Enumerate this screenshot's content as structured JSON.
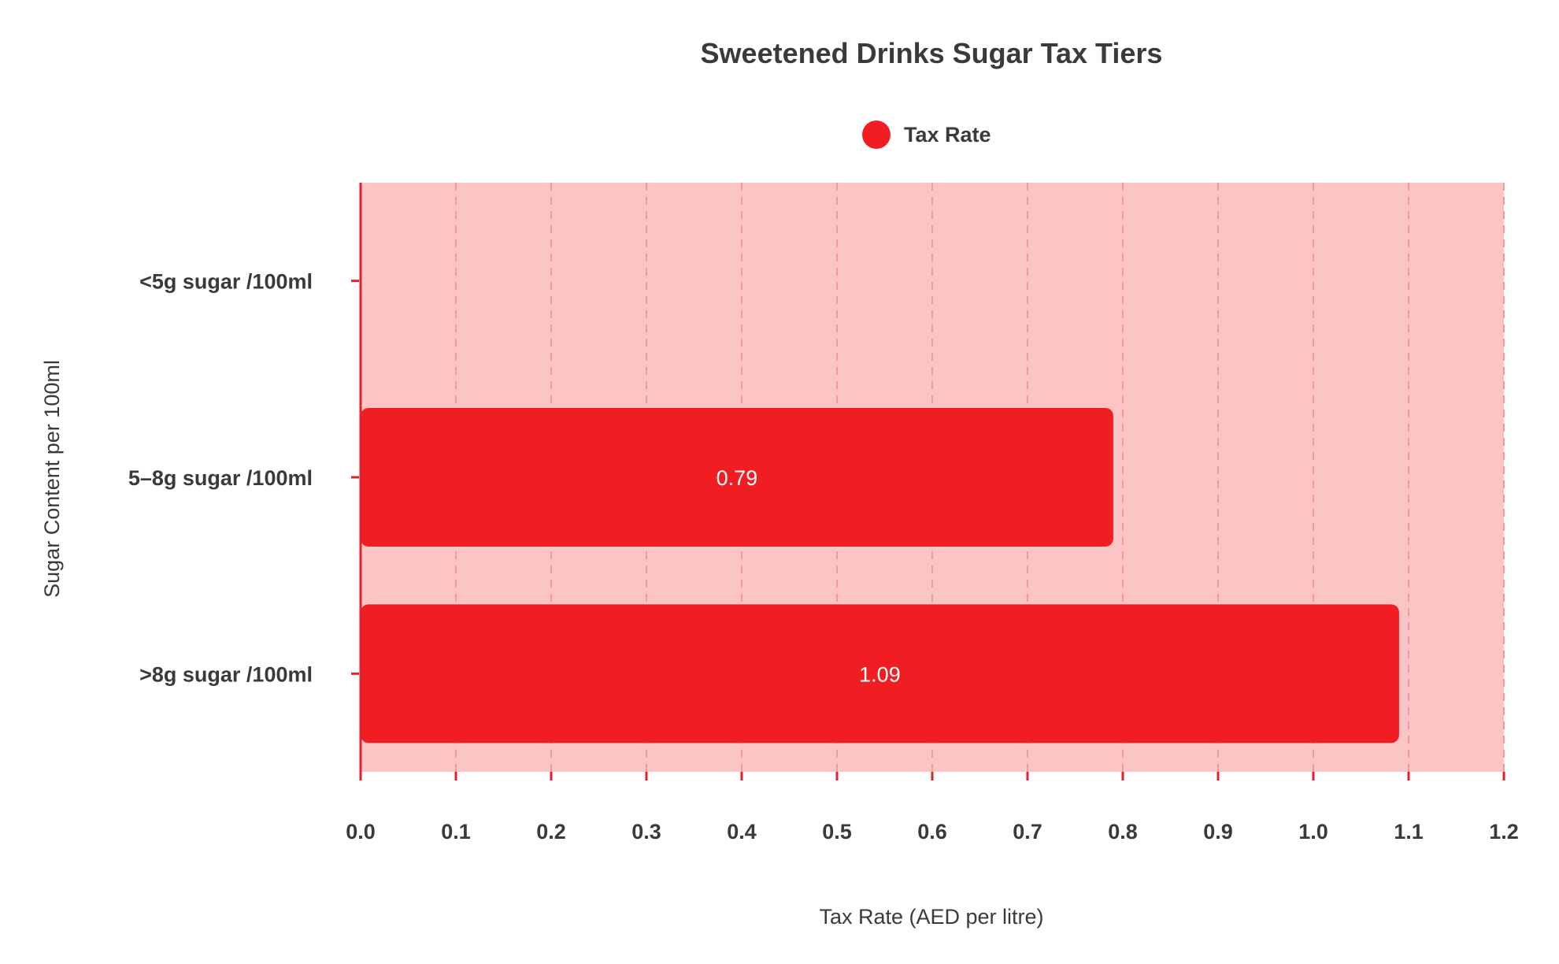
{
  "chart_data": {
    "type": "bar",
    "orientation": "horizontal",
    "title": "Sweetened Drinks Sugar Tax Tiers",
    "xlabel": "Tax Rate (AED per litre)",
    "ylabel": "Sugar Content per 100ml",
    "categories": [
      "<5g sugar /100ml",
      "5–8g sugar /100ml",
      ">8g sugar /100ml"
    ],
    "series": [
      {
        "name": "Tax Rate",
        "values": [
          0.0,
          0.79,
          1.09
        ],
        "value_labels": [
          "",
          "0.79",
          "1.09"
        ]
      }
    ],
    "xlim": [
      0,
      1.2
    ],
    "xticks": [
      "0.0",
      "0.1",
      "0.2",
      "0.3",
      "0.4",
      "0.5",
      "0.6",
      "0.7",
      "0.8",
      "0.9",
      "1.0",
      "1.1",
      "1.2"
    ],
    "grid": true,
    "legend_position": "top-center",
    "colors": {
      "bar": "#f01e23",
      "plot_background": "#fcc5c5",
      "grid": "#f49a9c",
      "axis": "#e0222a",
      "text": "#3a3a3a",
      "bar_label": "#ffffff"
    }
  }
}
